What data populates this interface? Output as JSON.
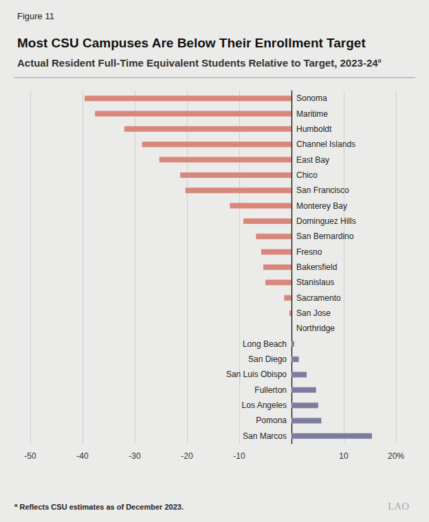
{
  "chart_data": {
    "type": "bar",
    "orientation": "horizontal",
    "figure_label": "Figure 11",
    "title": "Most CSU Campuses Are Below Their Enrollment Target",
    "subtitle": "Actual Resident Full-Time Equivalent Students Relative to Target, 2023-24",
    "subtitle_note": "a",
    "footnote": {
      "marker": "a",
      "text": "Reflects CSU estimates as of December 2023."
    },
    "source_logo": "LAO",
    "categories": [
      "Sonoma",
      "Maritime",
      "Humboldt",
      "Channel Islands",
      "East Bay",
      "Chico",
      "San Francisco",
      "Monterey Bay",
      "Dominguez Hills",
      "San Bernardino",
      "Fresno",
      "Bakersfield",
      "Stanislaus",
      "Sacramento",
      "San Jose",
      "Northridge",
      "Long Beach",
      "San Diego",
      "San Luis Obispo",
      "Fullerton",
      "Los Angeles",
      "Pomona",
      "San Marcos"
    ],
    "values": [
      -39.6,
      -37.6,
      -32.0,
      -28.6,
      -25.3,
      -21.3,
      -20.3,
      -11.8,
      -9.2,
      -6.8,
      -5.8,
      -5.4,
      -5.0,
      -1.4,
      -0.4,
      0,
      0.5,
      1.4,
      2.9,
      4.7,
      5.1,
      5.7,
      15.4
    ],
    "colors": [
      "#d9877a",
      "#d9877a",
      "#d9877a",
      "#d9877a",
      "#d9877a",
      "#d9877a",
      "#d9877a",
      "#d9877a",
      "#d9877a",
      "#d9877a",
      "#d9877a",
      "#d9877a",
      "#d9877a",
      "#d9877a",
      "#d9877a",
      "#d9877a",
      "#7c7d9c",
      "#7c7d9c",
      "#7c7d9c",
      "#7c7d9c",
      "#7c7d9c",
      "#7c7d9c",
      "#7c7d9c"
    ],
    "xlim": [
      -50,
      20
    ],
    "xticks": [
      -50,
      -40,
      -30,
      -20,
      -10,
      10,
      {
        "value": 20,
        "label": "20%"
      }
    ],
    "grid": true
  }
}
